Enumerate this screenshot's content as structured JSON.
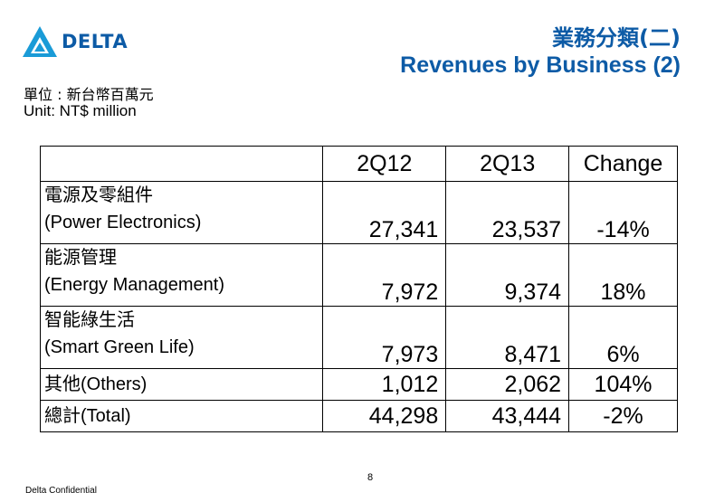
{
  "header": {
    "logo_text": "DELTA",
    "title_zh": "業務分類(二)",
    "title_en": "Revenues by Business (2)",
    "unit_zh": "單位 : 新台幣百萬元",
    "unit_en": "Unit: NT$ million"
  },
  "table": {
    "columns": [
      "",
      "2Q12",
      "2Q13",
      "Change"
    ],
    "rows": [
      {
        "label_zh": "電源及零組件",
        "label_en": "(Power Electronics)",
        "q12": "27,341",
        "q13": "23,537",
        "change": "-14%"
      },
      {
        "label_zh": "能源管理",
        "label_en": "(Energy Management)",
        "q12": "7,972",
        "q13": "9,374",
        "change": "18%"
      },
      {
        "label_zh": "智能綠生活",
        "label_en": "(Smart Green Life)",
        "q12": "7,973",
        "q13": "8,471",
        "change": "6%"
      },
      {
        "label": "其他(Others)",
        "q12": "1,012",
        "q13": "2,062",
        "change": "104%"
      },
      {
        "label": "總計(Total)",
        "q12": "44,298",
        "q13": "43,444",
        "change": "-2%"
      }
    ]
  },
  "footer": {
    "page_number": "8",
    "confidential": "Delta Confidential"
  },
  "colors": {
    "brand_blue": "#0d5ba6",
    "logo_blue": "#1a9bd7"
  }
}
